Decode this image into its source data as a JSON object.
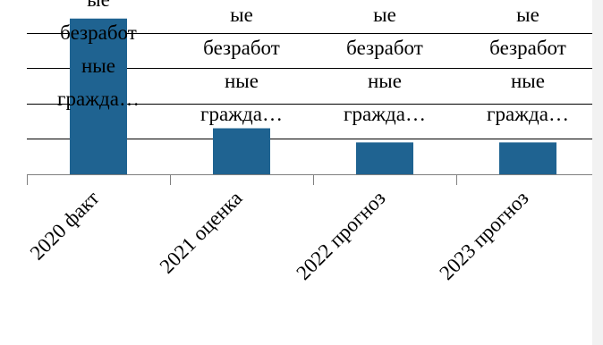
{
  "chart_data": {
    "type": "bar",
    "categories": [
      "2020 факт",
      "2021 оценка",
      "2022 прогноз",
      "2023 прогноз"
    ],
    "values": [
      4.4,
      1.3,
      0.9,
      0.9
    ],
    "data_labels": [
      [
        "ые",
        "безработ",
        "ные",
        "гражда…"
      ],
      [
        "ые",
        "безработ",
        "ные",
        "гражда…"
      ],
      [
        "ые",
        "безработ",
        "ные",
        "гражда…"
      ],
      [
        "ые",
        "безработ",
        "ные",
        "гражда…"
      ]
    ],
    "ylim": [
      0,
      5
    ],
    "grid": true,
    "colors": {
      "bar": "#1f6391"
    }
  }
}
